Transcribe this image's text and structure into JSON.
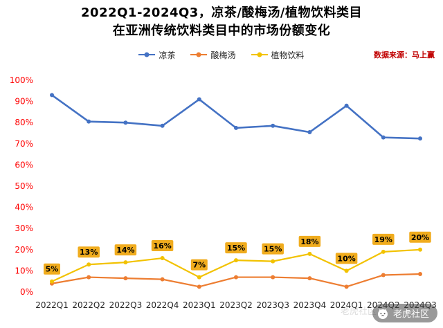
{
  "title": {
    "line1": "2022Q1-2024Q3，凉茶/酸梅汤/植物饮料类目",
    "line2": "在亚洲传统饮料类目中的市场份额变化"
  },
  "source_note": "数据来源：马上赢",
  "watermark": {
    "badge_text": "老虎社区",
    "ghost_text": "老虎社区"
  },
  "colors": {
    "title": "#000000",
    "y_axis_labels": "#FF0000",
    "x_axis_labels": "#262626",
    "source_note": "#C00000",
    "label_box_bg": "#F0AC1E",
    "label_box_text": "#000000",
    "series_blue": "#4472C4",
    "series_orange": "#ED7D31",
    "series_yellow": "#F2C200"
  },
  "chart_data": {
    "type": "line",
    "title": "2022Q1-2024Q3，凉茶/酸梅汤/植物饮料类目 在亚洲传统饮料类目中的市场份额变化",
    "categories": [
      "2022Q1",
      "2022Q2",
      "2022Q3",
      "2022Q4",
      "2023Q1",
      "2023Q2",
      "2023Q3",
      "2023Q4",
      "2024Q1",
      "2024Q2",
      "2024Q3"
    ],
    "series": [
      {
        "name": "凉茶",
        "color": "#4472C4",
        "values": [
          93,
          80.5,
          80,
          78.5,
          91,
          77.5,
          78.5,
          75.5,
          88,
          73,
          72.5
        ]
      },
      {
        "name": "酸梅汤",
        "color": "#ED7D31",
        "values": [
          4,
          7,
          6.5,
          6,
          2.5,
          7,
          7,
          6.5,
          2.5,
          8,
          8.5
        ]
      },
      {
        "name": "植物饮料",
        "color": "#F2C200",
        "values": [
          5,
          13,
          14,
          16,
          7,
          15,
          14.5,
          18,
          10,
          19,
          20
        ],
        "labels": [
          "5%",
          "13%",
          "14%",
          "16%",
          "7%",
          "15%",
          "15%",
          "18%",
          "10%",
          "19%",
          "20%"
        ]
      }
    ],
    "xlabel": "",
    "ylabel": "",
    "ylim": [
      0,
      100
    ],
    "ytick_step": 10,
    "ytick_format": "percent",
    "grid": false,
    "legend_position": "top"
  }
}
